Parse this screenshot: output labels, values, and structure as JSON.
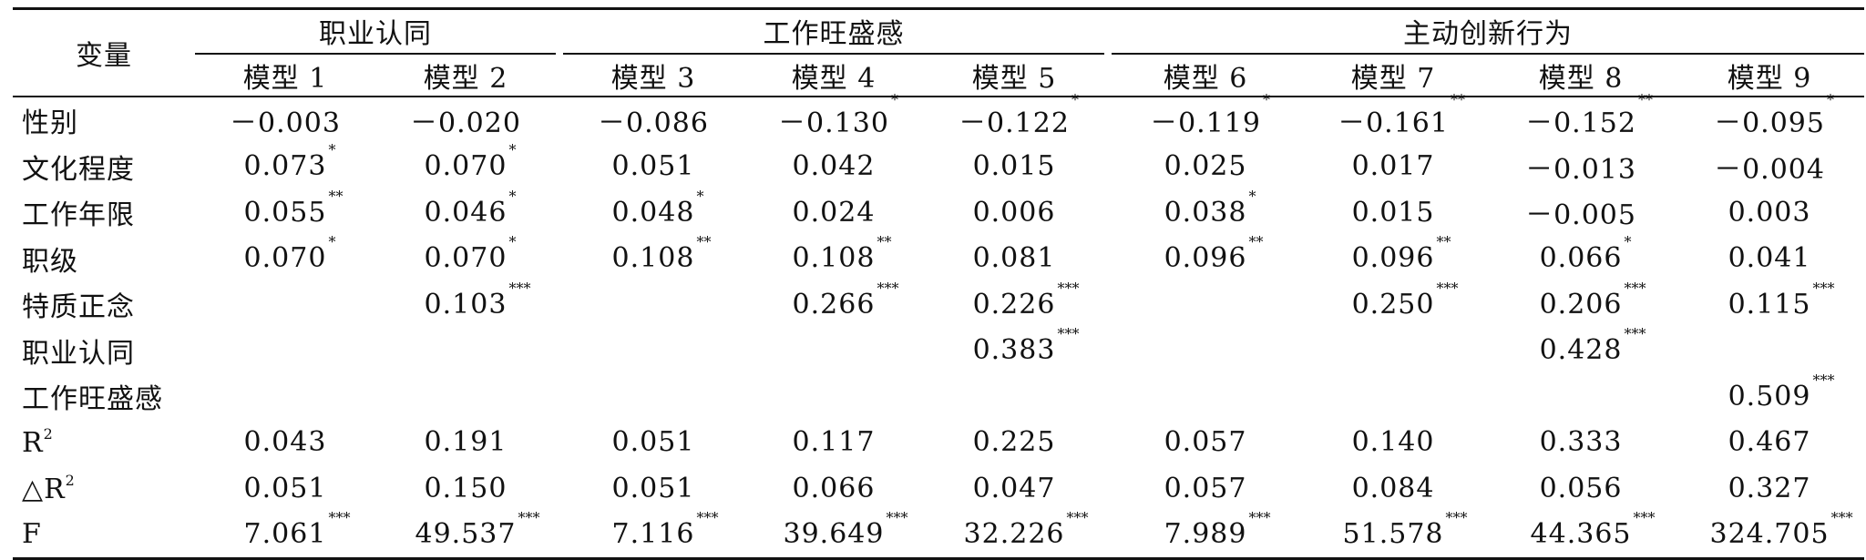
{
  "table": {
    "corner_label": "变量",
    "groups": [
      {
        "label": "职业认同"
      },
      {
        "label": "工作旺盛感"
      },
      {
        "label": "主动创新行为"
      }
    ],
    "models": [
      "模型 1",
      "模型 2",
      "模型 3",
      "模型 4",
      "模型 5",
      "模型 6",
      "模型 7",
      "模型 8",
      "模型 9"
    ],
    "rows": [
      {
        "label": "性别",
        "cells": [
          {
            "v": "－0.003",
            "s": ""
          },
          {
            "v": "－0.020",
            "s": ""
          },
          {
            "v": "－0.086",
            "s": ""
          },
          {
            "v": "－0.130",
            "s": "*"
          },
          {
            "v": "－0.122",
            "s": "*"
          },
          {
            "v": "－0.119",
            "s": "*"
          },
          {
            "v": "－0.161",
            "s": "**"
          },
          {
            "v": "－0.152",
            "s": "**"
          },
          {
            "v": "－0.095",
            "s": "*"
          }
        ]
      },
      {
        "label": "文化程度",
        "cells": [
          {
            "v": "0.073",
            "s": "*"
          },
          {
            "v": "0.070",
            "s": "*"
          },
          {
            "v": "0.051",
            "s": ""
          },
          {
            "v": "0.042",
            "s": ""
          },
          {
            "v": "0.015",
            "s": ""
          },
          {
            "v": "0.025",
            "s": ""
          },
          {
            "v": "0.017",
            "s": ""
          },
          {
            "v": "－0.013",
            "s": ""
          },
          {
            "v": "－0.004",
            "s": ""
          }
        ]
      },
      {
        "label": "工作年限",
        "cells": [
          {
            "v": "0.055",
            "s": "**"
          },
          {
            "v": "0.046",
            "s": "*"
          },
          {
            "v": "0.048",
            "s": "*"
          },
          {
            "v": "0.024",
            "s": ""
          },
          {
            "v": "0.006",
            "s": ""
          },
          {
            "v": "0.038",
            "s": "*"
          },
          {
            "v": "0.015",
            "s": ""
          },
          {
            "v": "－0.005",
            "s": ""
          },
          {
            "v": "0.003",
            "s": ""
          }
        ]
      },
      {
        "label": "职级",
        "cells": [
          {
            "v": "0.070",
            "s": "*"
          },
          {
            "v": "0.070",
            "s": "*"
          },
          {
            "v": "0.108",
            "s": "**"
          },
          {
            "v": "0.108",
            "s": "**"
          },
          {
            "v": "0.081",
            "s": ""
          },
          {
            "v": "0.096",
            "s": "**"
          },
          {
            "v": "0.096",
            "s": "**"
          },
          {
            "v": "0.066",
            "s": "*"
          },
          {
            "v": "0.041",
            "s": ""
          }
        ]
      },
      {
        "label": "特质正念",
        "cells": [
          {
            "v": "",
            "s": ""
          },
          {
            "v": "0.103",
            "s": "***"
          },
          {
            "v": "",
            "s": ""
          },
          {
            "v": "0.266",
            "s": "***"
          },
          {
            "v": "0.226",
            "s": "***"
          },
          {
            "v": "",
            "s": ""
          },
          {
            "v": "0.250",
            "s": "***"
          },
          {
            "v": "0.206",
            "s": "***"
          },
          {
            "v": "0.115",
            "s": "***"
          }
        ]
      },
      {
        "label": "职业认同",
        "cells": [
          {
            "v": "",
            "s": ""
          },
          {
            "v": "",
            "s": ""
          },
          {
            "v": "",
            "s": ""
          },
          {
            "v": "",
            "s": ""
          },
          {
            "v": "0.383",
            "s": "***"
          },
          {
            "v": "",
            "s": ""
          },
          {
            "v": "",
            "s": ""
          },
          {
            "v": "0.428",
            "s": "***"
          },
          {
            "v": "",
            "s": ""
          }
        ]
      },
      {
        "label": "工作旺盛感",
        "cells": [
          {
            "v": "",
            "s": ""
          },
          {
            "v": "",
            "s": ""
          },
          {
            "v": "",
            "s": ""
          },
          {
            "v": "",
            "s": ""
          },
          {
            "v": "",
            "s": ""
          },
          {
            "v": "",
            "s": ""
          },
          {
            "v": "",
            "s": ""
          },
          {
            "v": "",
            "s": ""
          },
          {
            "v": "0.509",
            "s": "***"
          }
        ]
      },
      {
        "label": "R",
        "label_sup": "2",
        "cells": [
          {
            "v": "0.043",
            "s": ""
          },
          {
            "v": "0.191",
            "s": ""
          },
          {
            "v": "0.051",
            "s": ""
          },
          {
            "v": "0.117",
            "s": ""
          },
          {
            "v": "0.225",
            "s": ""
          },
          {
            "v": "0.057",
            "s": ""
          },
          {
            "v": "0.140",
            "s": ""
          },
          {
            "v": "0.333",
            "s": ""
          },
          {
            "v": "0.467",
            "s": ""
          }
        ]
      },
      {
        "label": "△R",
        "label_sup": "2",
        "cells": [
          {
            "v": "0.051",
            "s": ""
          },
          {
            "v": "0.150",
            "s": ""
          },
          {
            "v": "0.051",
            "s": ""
          },
          {
            "v": "0.066",
            "s": ""
          },
          {
            "v": "0.047",
            "s": ""
          },
          {
            "v": "0.057",
            "s": ""
          },
          {
            "v": "0.084",
            "s": ""
          },
          {
            "v": "0.056",
            "s": ""
          },
          {
            "v": "0.327",
            "s": ""
          }
        ]
      },
      {
        "label": "F",
        "cells": [
          {
            "v": "7.061",
            "s": "***"
          },
          {
            "v": "49.537",
            "s": "***"
          },
          {
            "v": "7.116",
            "s": "***"
          },
          {
            "v": "39.649",
            "s": "***"
          },
          {
            "v": "32.226",
            "s": "***"
          },
          {
            "v": "7.989",
            "s": "***"
          },
          {
            "v": "51.578",
            "s": "***"
          },
          {
            "v": "44.365",
            "s": "***"
          },
          {
            "v": "324.705",
            "s": "***"
          }
        ]
      }
    ]
  }
}
